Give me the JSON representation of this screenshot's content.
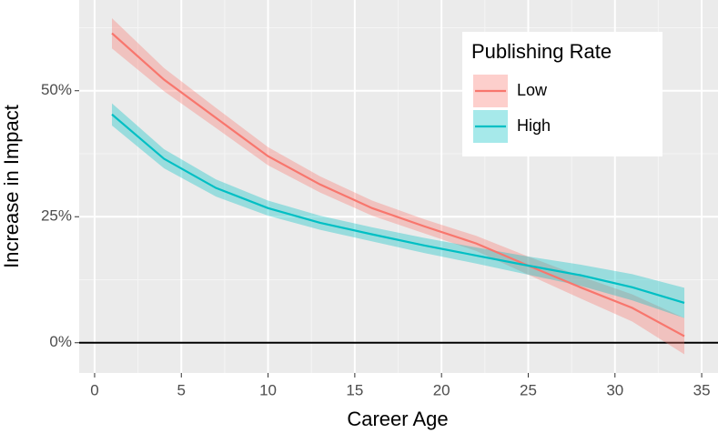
{
  "chart_data": {
    "type": "line",
    "x_label": "Career Age",
    "y_label": "Increase in Impact",
    "x": [
      1,
      4,
      7,
      10,
      13,
      16,
      19,
      22,
      25,
      28,
      31,
      34
    ],
    "series": [
      {
        "name": "Low",
        "color": "#F8766D",
        "values": [
          61.4,
          52.2,
          44.6,
          37,
          31.4,
          26.7,
          23.1,
          19.7,
          15.3,
          11,
          6.9,
          1.3
        ],
        "lower": [
          58.4,
          49.9,
          42.6,
          35.2,
          29.8,
          25.2,
          21.7,
          18.2,
          13.5,
          8.8,
          4.2,
          -2.3
        ],
        "upper": [
          64.4,
          54.5,
          46.6,
          38.8,
          33,
          28.2,
          24.5,
          21.2,
          17.1,
          13.2,
          9.6,
          4.9
        ]
      },
      {
        "name": "High",
        "color": "#00BFC4",
        "values": [
          45.3,
          36.5,
          30.7,
          26.7,
          23.8,
          21.5,
          19.3,
          17.3,
          15.3,
          13.4,
          11,
          7.9
        ],
        "lower": [
          43.1,
          34.6,
          29,
          25.2,
          22.4,
          20.1,
          17.8,
          15.7,
          13.5,
          11.3,
          8.4,
          4.9
        ],
        "upper": [
          47.5,
          38.4,
          32.4,
          28.2,
          25.2,
          22.9,
          20.8,
          18.9,
          17.1,
          15.5,
          13.6,
          10.9
        ]
      }
    ],
    "xlim": [
      -0.89,
      35.94
    ],
    "xticks": [
      0,
      5,
      10,
      15,
      20,
      25,
      30,
      35
    ],
    "xminorticks": [
      2.5,
      7.5,
      12.5,
      17.5,
      22.5,
      27.5,
      32.5
    ],
    "ylim": [
      -6,
      68
    ],
    "yticks": [
      {
        "value": 0,
        "label": "0%"
      },
      {
        "value": 25,
        "label": "25%"
      },
      {
        "value": 50,
        "label": "50%"
      }
    ],
    "yminorticks": [
      12.5,
      37.5,
      62.5
    ],
    "hline": 0,
    "grid": true,
    "legend": {
      "title": "Publishing Rate",
      "position": "top-right"
    }
  }
}
